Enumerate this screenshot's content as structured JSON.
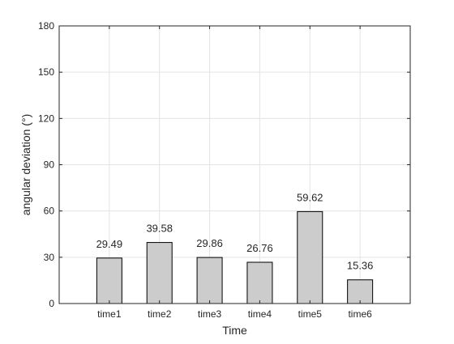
{
  "chart_data": {
    "type": "bar",
    "title": "",
    "xlabel": "Time",
    "ylabel": "angular deviation (°)",
    "categories": [
      "time1",
      "time2",
      "time3",
      "time4",
      "time5",
      "time6"
    ],
    "values": [
      29.49,
      39.58,
      29.86,
      26.76,
      59.62,
      15.36
    ],
    "value_labels": [
      "29.49",
      "39.58",
      "29.86",
      "26.76",
      "59.62",
      "15.36"
    ],
    "ylim": [
      0,
      180
    ],
    "yticks": [
      0,
      30,
      60,
      90,
      120,
      150,
      180
    ],
    "ytick_labels": [
      "0",
      "30",
      "60",
      "90",
      "120",
      "150",
      "180"
    ],
    "grid": true,
    "colors": {
      "bar_fill": "#cccccc",
      "bar_stroke": "#000000",
      "axis": "#262626",
      "grid": "#e3e3e3"
    }
  }
}
